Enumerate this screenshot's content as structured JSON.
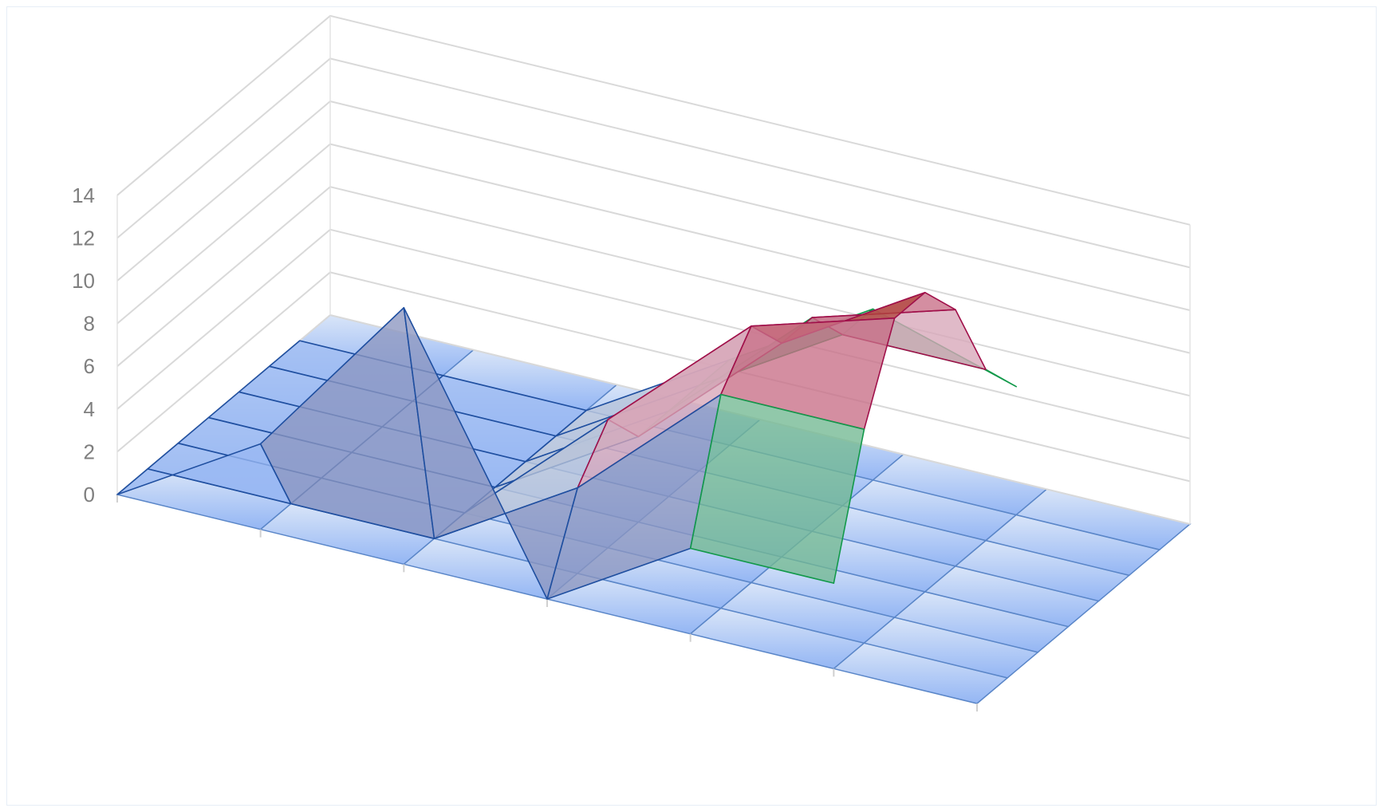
{
  "chart_data": {
    "type": "surface-3d",
    "title": "",
    "zlim": [
      0,
      14
    ],
    "z_ticks": [
      "0",
      "2",
      "4",
      "6",
      "8",
      "10",
      "12",
      "14"
    ],
    "grid": true,
    "legend": "none",
    "band_colors": {
      "0-2": "#9ab8f2",
      "2-4": "#b8c4da",
      "4-6": "#8c96c0",
      "6-8": "#72b892",
      "8-10": "#d7a6b8",
      "10-12": "#c86e86",
      "12-14": "#b1473e"
    },
    "rows": [
      {
        "name": "",
        "values": [
          0,
          0,
          0,
          0,
          0,
          0,
          0
        ]
      },
      {
        "name": "",
        "values": [
          4,
          0,
          0,
          0,
          0,
          0,
          0
        ]
      },
      {
        "name": "",
        "values": [
          12,
          0,
          0,
          0,
          0,
          0,
          0
        ]
      },
      {
        "name": "",
        "values": [
          0,
          4,
          6,
          4,
          4,
          4,
          4
        ]
      },
      {
        "name": "",
        "values": [
          4,
          10,
          12,
          10,
          10,
          8,
          8
        ]
      },
      {
        "name": "",
        "values": [
          4,
          10,
          14,
          14,
          12,
          8,
          6
        ]
      }
    ]
  }
}
